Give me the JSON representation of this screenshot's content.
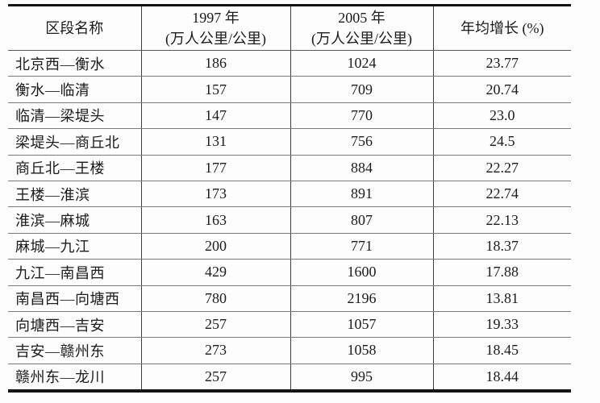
{
  "table": {
    "header": {
      "col1": "区段名称",
      "col2_line1": "1997 年",
      "col2_line2": "(万人公里/公里)",
      "col3_line1": "2005 年",
      "col3_line2": "(万人公里/公里)",
      "col4": "年均增长 (%)"
    },
    "rows": [
      {
        "section": "北京西—衡水",
        "v1997": "186",
        "v2005": "1024",
        "growth": "23.77"
      },
      {
        "section": "衡水—临清",
        "v1997": "157",
        "v2005": "709",
        "growth": "20.74"
      },
      {
        "section": "临清—梁堤头",
        "v1997": "147",
        "v2005": "770",
        "growth": "23.0"
      },
      {
        "section": "梁堤头—商丘北",
        "v1997": "131",
        "v2005": "756",
        "growth": "24.5"
      },
      {
        "section": "商丘北—王楼",
        "v1997": "177",
        "v2005": "884",
        "growth": "22.27"
      },
      {
        "section": "王楼—淮滨",
        "v1997": "173",
        "v2005": "891",
        "growth": "22.74"
      },
      {
        "section": "淮滨—麻城",
        "v1997": "163",
        "v2005": "807",
        "growth": "22.13"
      },
      {
        "section": "麻城—九江",
        "v1997": "200",
        "v2005": "771",
        "growth": "18.37"
      },
      {
        "section": "九江—南昌西",
        "v1997": "429",
        "v2005": "1600",
        "growth": "17.88"
      },
      {
        "section": "南昌西—向塘西",
        "v1997": "780",
        "v2005": "2196",
        "growth": "13.81"
      },
      {
        "section": "向塘西—吉安",
        "v1997": "257",
        "v2005": "1057",
        "growth": "19.33"
      },
      {
        "section": "吉安—赣州东",
        "v1997": "273",
        "v2005": "1058",
        "growth": "18.45"
      },
      {
        "section": "赣州东—龙川",
        "v1997": "257",
        "v2005": "995",
        "growth": "18.44"
      }
    ],
    "colors": {
      "border_heavy": "#141414",
      "border_vertical": "#3c3c3c",
      "border_row": "#7a7a7a",
      "text": "#1b1b1b",
      "background": "#fdfdfd"
    }
  }
}
